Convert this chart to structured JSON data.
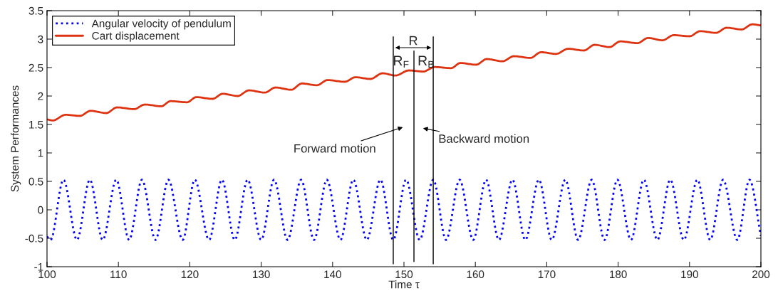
{
  "chart_data": {
    "type": "line",
    "xlabel": "Time τ",
    "ylabel": "System Performances",
    "xlim": [
      100,
      200
    ],
    "xticks": [
      100,
      110,
      120,
      130,
      140,
      150,
      160,
      170,
      180,
      190,
      200
    ],
    "ylim": [
      -1,
      3.5
    ],
    "yticks": [
      -1,
      -0.5,
      0,
      0.5,
      1,
      1.5,
      2,
      2.5,
      3,
      3.5
    ],
    "grid": false,
    "legend": "top left",
    "series": [
      {
        "name": "Angular velocity of pendulum",
        "color": "#0000ff",
        "line_style": "dotted",
        "x": [
          100,
          100.5,
          102.3,
          104.2,
          106.0,
          107.8,
          109.7,
          111.5,
          113.3,
          115.2,
          117.0,
          119.0,
          120.7,
          122.7,
          124.5,
          126.3,
          128.1,
          130.0,
          131.8,
          133.7,
          135.6,
          137.4,
          139.2,
          141.1,
          142.9,
          144.8,
          146.7,
          148.5,
          150.3,
          152.2,
          154.1,
          155.9,
          157.8,
          159.7,
          161.5,
          163.3,
          165.2,
          167.0,
          168.9,
          170.7,
          172.6,
          174.4,
          176.3,
          178.1,
          179.9,
          181.8,
          183.6,
          185.5,
          187.3,
          189.2,
          191.1,
          192.9,
          194.7,
          196.7,
          198.4,
          200
        ],
        "values": [
          -0.47,
          -0.53,
          0.53,
          -0.53,
          0.53,
          -0.53,
          0.53,
          -0.53,
          0.53,
          -0.53,
          0.53,
          -0.53,
          0.53,
          -0.53,
          0.53,
          -0.53,
          0.53,
          -0.53,
          0.53,
          -0.53,
          0.53,
          -0.53,
          0.53,
          -0.53,
          0.53,
          -0.53,
          0.53,
          -0.53,
          0.53,
          -0.53,
          0.53,
          -0.53,
          0.53,
          -0.53,
          0.53,
          -0.53,
          0.53,
          -0.53,
          0.53,
          -0.53,
          0.53,
          -0.53,
          0.53,
          -0.53,
          0.53,
          -0.53,
          0.53,
          -0.53,
          0.53,
          -0.53,
          0.53,
          -0.53,
          0.53,
          -0.53,
          0.53,
          -0.46
        ]
      },
      {
        "name": "Cart displacement",
        "color": "#dd3311",
        "line_style": "solid",
        "x": [
          100,
          100.8,
          102.6,
          104.6,
          106.1,
          108.3,
          109.8,
          112.2,
          113.7,
          116.0,
          117.3,
          119.6,
          120.9,
          123.2,
          124.6,
          126.7,
          128.3,
          130.5,
          132.0,
          134.2,
          135.7,
          137.8,
          139.3,
          141.7,
          143.2,
          145.3,
          147.0,
          148.8,
          150.7,
          152.7,
          154.3,
          156.6,
          157.9,
          160.1,
          161.6,
          163.8,
          165.4,
          167.7,
          169.2,
          171.3,
          173.0,
          175.2,
          176.7,
          178.8,
          180.3,
          182.7,
          184.2,
          186.2,
          187.8,
          190.0,
          191.5,
          193.7,
          195.2,
          197.3,
          198.8,
          200
        ],
        "values": [
          1.59,
          1.57,
          1.67,
          1.65,
          1.74,
          1.7,
          1.8,
          1.77,
          1.85,
          1.82,
          1.91,
          1.89,
          1.98,
          1.95,
          2.04,
          2.0,
          2.1,
          2.06,
          2.15,
          2.11,
          2.22,
          2.19,
          2.28,
          2.25,
          2.33,
          2.3,
          2.4,
          2.36,
          2.45,
          2.43,
          2.51,
          2.49,
          2.58,
          2.55,
          2.65,
          2.61,
          2.7,
          2.67,
          2.77,
          2.74,
          2.83,
          2.8,
          2.9,
          2.86,
          2.96,
          2.93,
          3.02,
          2.98,
          3.07,
          3.05,
          3.14,
          3.11,
          3.2,
          3.17,
          3.26,
          3.24
        ]
      },
      {
        "color": "#000000",
        "line_style": "solid",
        "x": [
          148.5,
          148.5
        ],
        "values": [
          -0.95,
          3.04
        ]
      },
      {
        "color": "#000000",
        "line_style": "solid",
        "x": [
          151.4,
          151.4
        ],
        "values": [
          -0.91,
          2.79
        ]
      },
      {
        "color": "#000000",
        "line_style": "solid",
        "x": [
          154.1,
          154.1
        ],
        "values": [
          -0.95,
          3.04
        ]
      }
    ],
    "annotations": [
      {
        "text": "R",
        "x": 151.3,
        "y": 2.85
      },
      "R$_{F}$",
      "R$_{B}$",
      "Forward motion",
      "Backward motion"
    ]
  }
}
